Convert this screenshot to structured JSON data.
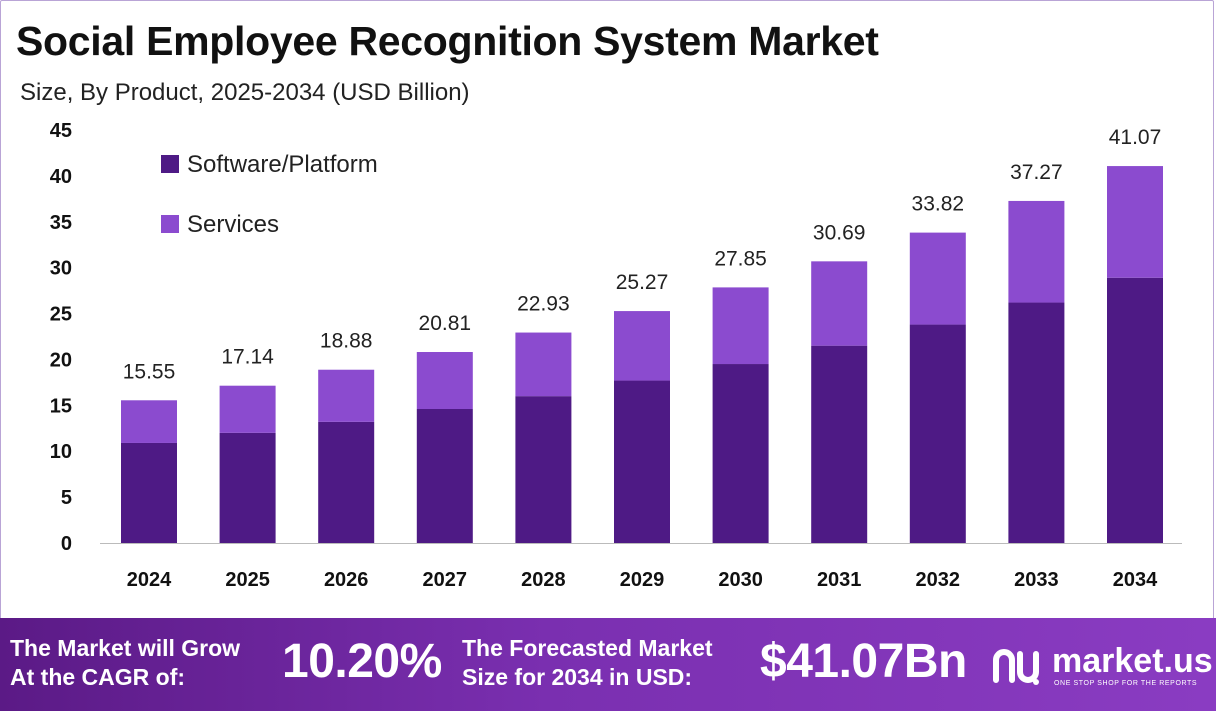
{
  "title": "Social Employee Recognition System Market",
  "subtitle": "Size, By Product, 2025-2034 (USD Billion)",
  "colors": {
    "software": "#4e1a85",
    "services": "#8b4bcf",
    "footer": "#7a2fb0",
    "axis": "#bbbbbb"
  },
  "chart_data": {
    "type": "bar",
    "stacked": true,
    "categories": [
      "2024",
      "2025",
      "2026",
      "2027",
      "2028",
      "2029",
      "2030",
      "2031",
      "2032",
      "2033",
      "2034"
    ],
    "series": [
      {
        "name": "Software/Platform",
        "values": [
          10.9,
          12.0,
          13.2,
          14.6,
          16.0,
          17.7,
          19.5,
          21.5,
          23.8,
          26.2,
          28.9
        ]
      },
      {
        "name": "Services",
        "values": [
          4.65,
          5.14,
          5.68,
          6.21,
          6.93,
          7.57,
          8.35,
          9.19,
          10.02,
          11.07,
          12.17
        ]
      }
    ],
    "totals": [
      "15.55",
      "17.14",
      "18.88",
      "20.81",
      "22.93",
      "25.27",
      "27.85",
      "30.69",
      "33.82",
      "37.27",
      "41.07"
    ],
    "yticks": [
      "0",
      "5",
      "10",
      "15",
      "20",
      "25",
      "30",
      "35",
      "40",
      "45"
    ],
    "ylim": [
      0,
      45
    ],
    "grid": false,
    "legend_position": "top-left"
  },
  "footer": {
    "cagr_label_line1": "The Market will Grow",
    "cagr_label_line2": "At the CAGR of:",
    "cagr_value": "10.20%",
    "forecast_label_line1": "The Forecasted Market",
    "forecast_label_line2": "Size for 2034 in USD:",
    "forecast_value": "$41.07Bn",
    "brand_name": "market.us",
    "brand_tagline": "ONE STOP SHOP FOR THE REPORTS"
  }
}
